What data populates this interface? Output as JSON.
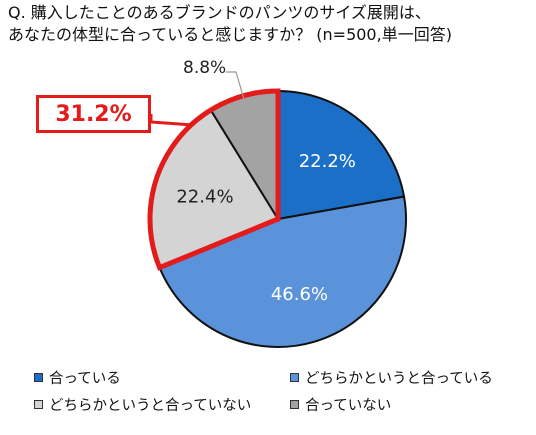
{
  "title_lines": [
    "Q. 購入したことのあるブランドのパンツのサイズ展開は、",
    "あなたの体型に合っていると感じますか？ (n=500,単一回答)"
  ],
  "chart_data": {
    "type": "pie",
    "categories": [
      "合っている",
      "どちらかというと合っている",
      "どちらかというと合っていない",
      "合っていない"
    ],
    "values": [
      22.2,
      46.6,
      22.4,
      8.8
    ],
    "data_labels": [
      "22.2%",
      "46.6%",
      "22.4%",
      "8.8%"
    ],
    "colors": [
      "#1b6fc6",
      "#5b93da",
      "#d4d4d4",
      "#a3a3a3"
    ],
    "highlight": {
      "label": "31.2%",
      "color": "#e31b1b"
    },
    "legend_position": "bottom"
  }
}
